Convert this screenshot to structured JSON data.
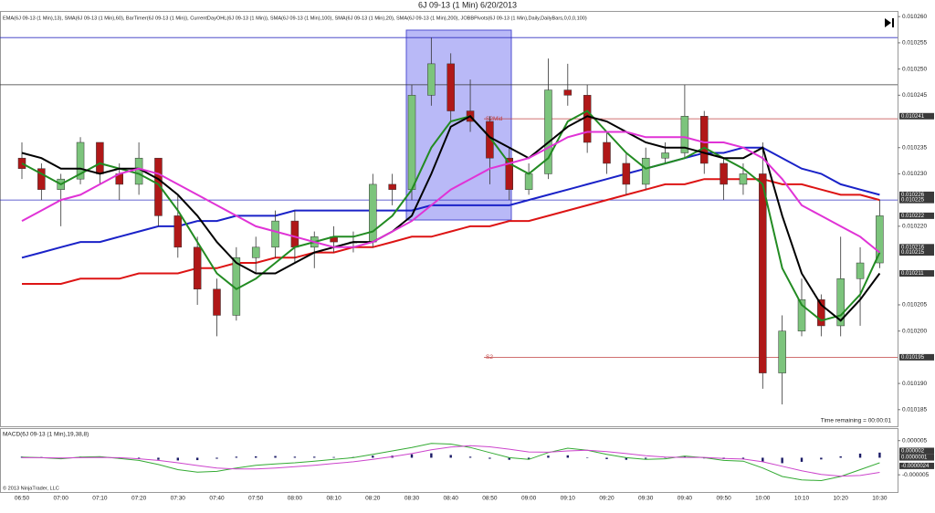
{
  "chart_data": [
    {
      "type": "candlestick",
      "title": "6J 09-13 (1 Min)  6/20/2013",
      "subtitle": "EMA(6J 09-13 (1 Min),13), SMA(6J 09-13 (1 Min),60), BarTimer(6J 09-13 (1 Min)), CurrentDayOHL(6J 09-13 (1 Min)), SMA(6J 09-13 (1 Min),100), SMA(6J 09-13 (1 Min),20), SMA(6J 09-13 (1 Min),200), JOBBPivots(6J 09-13 (1 Min),Daily,DailyBars,0,0,0,100)",
      "annotation": "Time remaining = 00:00:01",
      "categories": [
        "06:50",
        null,
        "07:00",
        null,
        "07:10",
        null,
        "07:20",
        null,
        "07:30",
        null,
        "07:40",
        null,
        "07:50",
        null,
        "08:00",
        null,
        "08:10",
        null,
        "08:20",
        null,
        "08:30",
        null,
        "08:40",
        null,
        "08:50",
        null,
        "09:00",
        null,
        "09:10",
        null,
        "09:20",
        null,
        "09:30",
        null,
        "09:40",
        null,
        "09:50",
        null,
        "10:00",
        null,
        "10:10",
        null,
        "10:20",
        null,
        "10:30"
      ],
      "open": [
        0.010233,
        0.010231,
        0.010227,
        0.010229,
        0.010236,
        0.01023,
        0.010228,
        0.010233,
        0.010222,
        0.010216,
        0.010208,
        0.010203,
        0.010214,
        0.010216,
        0.010221,
        0.010216,
        0.010218,
        0.010217,
        0.010217,
        0.010228,
        0.010227,
        0.010245,
        0.010251,
        0.010242,
        0.01024,
        0.010233,
        0.010227,
        0.01023,
        0.010246,
        0.010245,
        0.010236,
        0.010232,
        0.010228,
        0.010233,
        0.010234,
        0.010241,
        0.010232,
        0.010228,
        0.01023,
        0.010192,
        0.0102,
        0.010206,
        0.010201,
        0.01021,
        0.010213
      ],
      "high": [
        0.010236,
        0.010232,
        0.01023,
        0.010237,
        0.010236,
        0.010232,
        0.010236,
        0.010233,
        0.010226,
        0.010218,
        0.01021,
        0.010216,
        0.010218,
        0.010223,
        0.010223,
        0.010219,
        0.01022,
        0.010219,
        0.01023,
        0.01023,
        0.010247,
        0.010256,
        0.010253,
        0.010248,
        0.010241,
        0.010235,
        0.010232,
        0.010252,
        0.010251,
        0.010247,
        0.010238,
        0.010234,
        0.010235,
        0.010236,
        0.010247,
        0.010242,
        0.010233,
        0.010232,
        0.010236,
        0.010203,
        0.01021,
        0.010207,
        0.010218,
        0.010216,
        0.010225
      ],
      "low": [
        0.010229,
        0.010225,
        0.01022,
        0.010228,
        0.010228,
        0.010225,
        0.010226,
        0.01022,
        0.010214,
        0.010205,
        0.010199,
        0.010202,
        0.010211,
        0.010214,
        0.010213,
        0.010212,
        0.010215,
        0.010215,
        0.010216,
        0.010224,
        0.010225,
        0.010243,
        0.01024,
        0.010238,
        0.010228,
        0.010225,
        0.010226,
        0.010229,
        0.010243,
        0.010234,
        0.01023,
        0.010226,
        0.010227,
        0.010232,
        0.010233,
        0.01023,
        0.010225,
        0.010226,
        0.010189,
        0.010186,
        0.010199,
        0.010199,
        0.010199,
        0.010201,
        0.010212
      ],
      "close": [
        0.010231,
        0.010227,
        0.010229,
        0.010236,
        0.01023,
        0.010228,
        0.010233,
        0.010222,
        0.010216,
        0.010208,
        0.010203,
        0.010214,
        0.010216,
        0.010221,
        0.010216,
        0.010218,
        0.010217,
        0.010217,
        0.010228,
        0.010227,
        0.010245,
        0.010251,
        0.010242,
        0.01024,
        0.010233,
        0.010227,
        0.01023,
        0.010246,
        0.010245,
        0.010236,
        0.010232,
        0.010228,
        0.010233,
        0.010234,
        0.010241,
        0.010232,
        0.010228,
        0.01023,
        0.010192,
        0.0102,
        0.010206,
        0.010201,
        0.01021,
        0.010213,
        0.010222
      ],
      "up_color": "#7cc47c",
      "down_color": "#b01818",
      "series": [
        {
          "color": "#228b22",
          "values": [
            0.010232,
            0.01023,
            0.010228,
            0.01023,
            0.010232,
            0.010231,
            0.01023,
            0.010228,
            0.010223,
            0.010217,
            0.010211,
            0.010208,
            0.01021,
            0.010213,
            0.010216,
            0.010217,
            0.010218,
            0.010218,
            0.010219,
            0.010222,
            0.010227,
            0.010235,
            0.01024,
            0.010241,
            0.010237,
            0.010232,
            0.01023,
            0.010233,
            0.01024,
            0.010242,
            0.010238,
            0.010234,
            0.010231,
            0.010232,
            0.010233,
            0.010235,
            0.010233,
            0.010231,
            0.010228,
            0.010212,
            0.010205,
            0.010202,
            0.010203,
            0.010207,
            0.010215
          ]
        },
        {
          "color": "#000000",
          "values": [
            0.010234,
            0.010233,
            0.010231,
            0.010231,
            0.01023,
            0.010231,
            0.010231,
            0.010229,
            0.010226,
            0.010222,
            0.010217,
            0.010213,
            0.010211,
            0.010211,
            0.010213,
            0.010215,
            0.010216,
            0.010217,
            0.010217,
            0.010219,
            0.010222,
            0.01023,
            0.010239,
            0.010241,
            0.010237,
            0.010235,
            0.010233,
            0.010236,
            0.010239,
            0.010241,
            0.01024,
            0.010238,
            0.010236,
            0.010235,
            0.010235,
            0.010234,
            0.010233,
            0.010233,
            0.010235,
            0.010222,
            0.010211,
            0.010205,
            0.010202,
            0.010206,
            0.010211
          ]
        },
        {
          "color": "#e033d6",
          "values": [
            0.010221,
            0.010223,
            0.010225,
            0.010226,
            0.010228,
            0.01023,
            0.010231,
            0.01023,
            0.010228,
            0.010226,
            0.010224,
            0.010222,
            0.01022,
            0.010219,
            0.010218,
            0.010217,
            0.010216,
            0.010216,
            0.010217,
            0.010219,
            0.010221,
            0.010224,
            0.010227,
            0.010229,
            0.010231,
            0.010232,
            0.010233,
            0.010235,
            0.010237,
            0.010238,
            0.010238,
            0.010238,
            0.010237,
            0.010237,
            0.010237,
            0.010236,
            0.010236,
            0.010235,
            0.010233,
            0.010229,
            0.010224,
            0.010222,
            0.01022,
            0.010218,
            0.010215
          ]
        },
        {
          "color": "#1a22c8",
          "values": [
            0.010214,
            0.010215,
            0.010216,
            0.010217,
            0.010217,
            0.010218,
            0.010219,
            0.01022,
            0.01022,
            0.010221,
            0.010221,
            0.010222,
            0.010222,
            0.010222,
            0.010223,
            0.010223,
            0.010223,
            0.010223,
            0.010223,
            0.010223,
            0.010223,
            0.010224,
            0.010224,
            0.010224,
            0.010224,
            0.010224,
            0.010225,
            0.010226,
            0.010227,
            0.010228,
            0.010229,
            0.01023,
            0.010231,
            0.010232,
            0.010233,
            0.010234,
            0.010234,
            0.010235,
            0.010235,
            0.010233,
            0.010231,
            0.01023,
            0.010228,
            0.010227,
            0.010226
          ]
        },
        {
          "color": "#dd1414",
          "values": [
            0.010209,
            0.010209,
            0.010209,
            0.01021,
            0.01021,
            0.01021,
            0.010211,
            0.010211,
            0.010211,
            0.010212,
            0.010212,
            0.010213,
            0.010213,
            0.010214,
            0.010214,
            0.010215,
            0.010215,
            0.010216,
            0.010216,
            0.010217,
            0.010218,
            0.010218,
            0.010219,
            0.01022,
            0.01022,
            0.010221,
            0.010221,
            0.010222,
            0.010223,
            0.010224,
            0.010225,
            0.010226,
            0.010227,
            0.010228,
            0.010228,
            0.010229,
            0.010229,
            0.010229,
            0.010229,
            0.010228,
            0.010228,
            0.010227,
            0.010226,
            0.010226,
            0.010225
          ]
        }
      ],
      "levels": [
        {
          "value": 0.010256,
          "color": "#3030c0"
        },
        {
          "value": 0.010247,
          "color": "#333333"
        },
        {
          "value": 0.010225,
          "color": "#3030c0"
        },
        {
          "value": 0.0102405,
          "color": "#c04040",
          "label": "S2Mid"
        },
        {
          "value": 0.010195,
          "color": "#c04040",
          "label": "S2"
        }
      ],
      "ylim": [
        0.0101827,
        0.0102623
      ],
      "yticks": [
        {
          "value": 0.01026,
          "label": "0.010260"
        },
        0.010255,
        {
          "value": 0.01025,
          "label": "0.010250"
        },
        0.010245,
        0.010235,
        {
          "value": 0.01023,
          "label": "0.010230"
        },
        {
          "value": 0.01022,
          "label": "0.010220"
        },
        0.010205,
        {
          "value": 0.0102,
          "label": "0.010200"
        },
        {
          "value": 0.01019,
          "label": "0.010190"
        },
        0.010185
      ],
      "price_markers": [
        0.010241,
        0.010226,
        0.010225,
        0.010222,
        0.010216,
        0.010215,
        0.010211,
        0.010195
      ]
    },
    {
      "type": "macd",
      "title": "MACD(6J 09-13 (1 Min),19,38,8)",
      "histogram": {
        "color": "#1a1a66",
        "values": [
          3e-07,
          2e-07,
          -2e-07,
          3e-07,
          2e-07,
          -3e-07,
          -4e-07,
          -6e-07,
          -8e-07,
          -7e-07,
          -3e-07,
          3e-07,
          4e-07,
          5e-07,
          3e-07,
          3e-07,
          2e-07,
          2e-07,
          6e-07,
          6e-07,
          1e-06,
          1.3e-06,
          8e-07,
          3e-07,
          -3e-07,
          -6e-07,
          -4e-07,
          6e-07,
          7e-07,
          1e-07,
          -4e-07,
          -6e-07,
          -3e-07,
          1e-07,
          4e-07,
          -2e-07,
          -4e-07,
          -3e-07,
          -1.2e-06,
          -1.6e-06,
          -1.2e-06,
          -5e-07,
          4e-07,
          1.2e-06,
          1.5e-06
        ]
      },
      "series": [
        {
          "color": "#33aa33",
          "values": [
            2e-07,
            0,
            -3e-07,
            2e-07,
            3e-07,
            -2e-07,
            -8e-07,
            -2e-06,
            -3.5e-06,
            -4.2e-06,
            -4e-06,
            -3e-06,
            -2.2e-06,
            -1.8e-06,
            -1.5e-06,
            -1e-06,
            -5e-07,
            0,
            1e-06,
            2e-06,
            3e-06,
            4.2e-06,
            4e-06,
            3e-06,
            1.5e-06,
            0,
            -5e-07,
            1.5e-06,
            2.8e-06,
            2.2e-06,
            1e-06,
            0,
            -5e-07,
            -3e-07,
            5e-07,
            0,
            -8e-07,
            -1e-06,
            -3e-06,
            -5.5e-06,
            -6.5e-06,
            -6.7e-06,
            -5.5e-06,
            -3.5e-06,
            -1.5e-06
          ]
        },
        {
          "color": "#cc44cc",
          "values": [
            0,
            0,
            -1e-07,
            0,
            1e-07,
            0,
            -3e-07,
            -8e-07,
            -1.5e-06,
            -2.3e-06,
            -3e-06,
            -3.3e-06,
            -3.3e-06,
            -3e-06,
            -2.6e-06,
            -2.2e-06,
            -1.7e-06,
            -1.2e-06,
            -5e-07,
            3e-07,
            1.2e-06,
            2.3e-06,
            3.1e-06,
            3.5e-06,
            3.2e-06,
            2.5e-06,
            1.7e-06,
            1.6e-06,
            2e-06,
            2.2e-06,
            1.8e-06,
            1.2e-06,
            6e-07,
            2e-07,
            1e-07,
            1e-07,
            -2e-07,
            -4e-07,
            -1.2e-06,
            -2.5e-06,
            -3.8e-06,
            -4.9e-06,
            -5.4e-06,
            -5.2e-06,
            -4.3e-06
          ]
        }
      ],
      "ylim": [
        -7.9e-06,
        8.4e-06
      ],
      "yticks": [
        {
          "value": 5e-06,
          "label": "0.000005"
        },
        {
          "value": -5e-06,
          "label": "-0.000005"
        }
      ],
      "price_markers": [
        {
          "value": 2e-06,
          "label": "0.000002"
        },
        {
          "value": 1e-07,
          "label": "0.0000001"
        },
        {
          "value": -2.4e-06,
          "label": "-0.0000024"
        }
      ]
    }
  ],
  "copyright": "© 2013 NinjaTrader, LLC"
}
